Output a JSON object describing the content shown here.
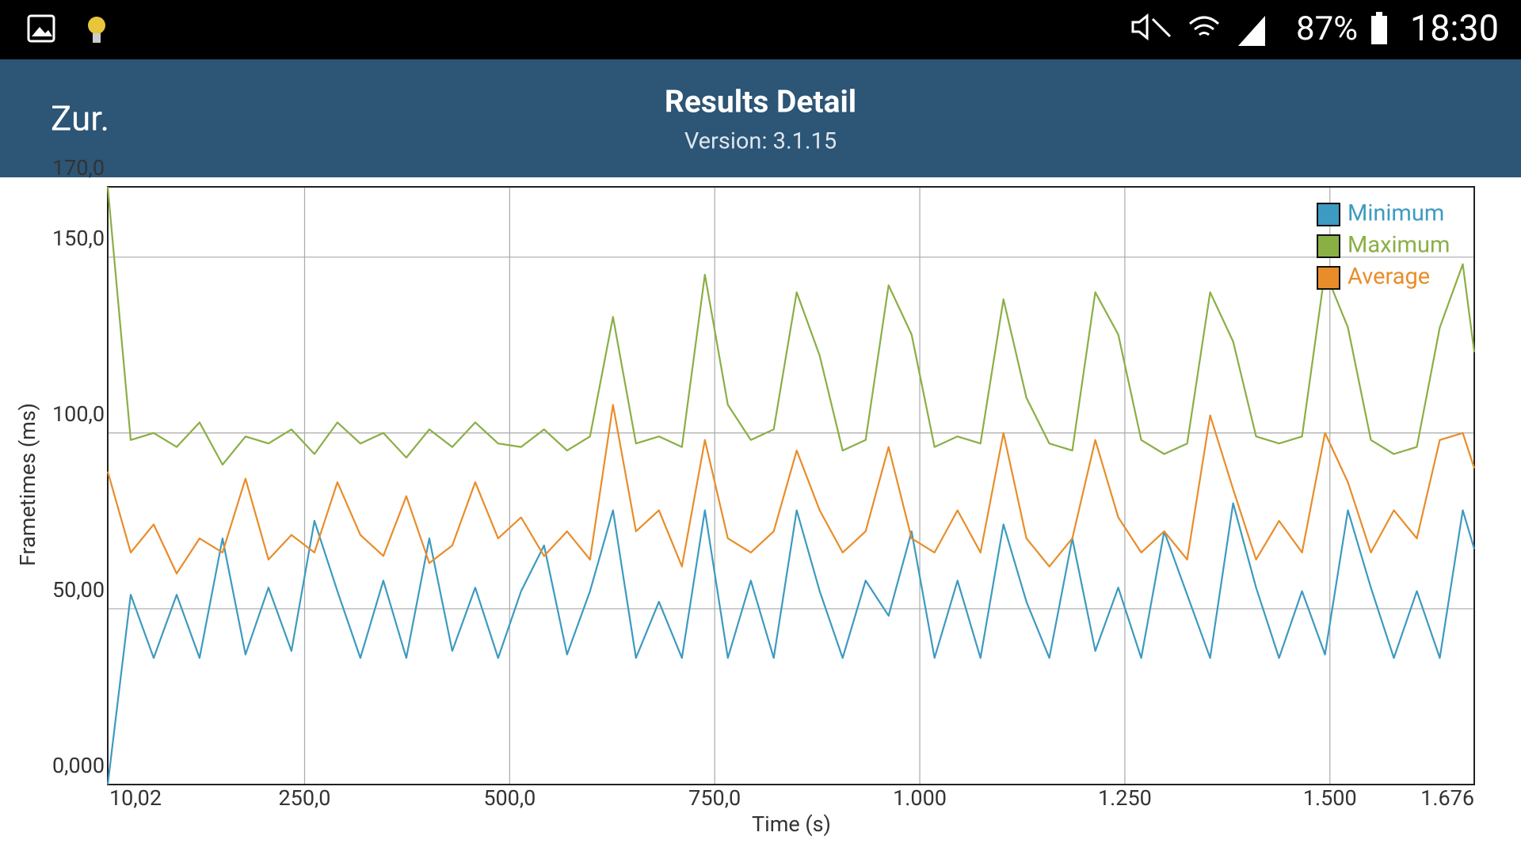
{
  "status_bar": {
    "battery": "87%",
    "time": "18:30"
  },
  "header": {
    "back": "Zur.",
    "title": "Results Detail",
    "subtitle": "Version: 3.1.15"
  },
  "chart_data": {
    "type": "line",
    "xlabel": "Time (s)",
    "ylabel": "Frametimes (ms)",
    "xlim": [
      10.02,
      1676
    ],
    "ylim": [
      0,
      170
    ],
    "xticks": [
      {
        "value": 10.02,
        "label": "10,02"
      },
      {
        "value": 250,
        "label": "250,0"
      },
      {
        "value": 500,
        "label": "500,0"
      },
      {
        "value": 750,
        "label": "750,0"
      },
      {
        "value": 1000,
        "label": "1.000"
      },
      {
        "value": 1250,
        "label": "1.250"
      },
      {
        "value": 1500,
        "label": "1.500"
      },
      {
        "value": 1676,
        "label": "1.676"
      }
    ],
    "yticks": [
      {
        "value": 0,
        "label": "0,000"
      },
      {
        "value": 50,
        "label": "50,00"
      },
      {
        "value": 100,
        "label": "100,0"
      },
      {
        "value": 150,
        "label": "150,0"
      },
      {
        "value": 170,
        "label": "170,0"
      }
    ],
    "grid": true,
    "legend": "upper right",
    "x": [
      10.02,
      38,
      66,
      94,
      122,
      150,
      178,
      206,
      234,
      262,
      290,
      318,
      346,
      374,
      402,
      430,
      458,
      486,
      514,
      542,
      570,
      598,
      626,
      654,
      682,
      710,
      738,
      766,
      794,
      822,
      850,
      878,
      906,
      934,
      962,
      990,
      1018,
      1046,
      1074,
      1102,
      1130,
      1158,
      1186,
      1214,
      1242,
      1270,
      1298,
      1326,
      1354,
      1382,
      1410,
      1438,
      1466,
      1494,
      1522,
      1550,
      1578,
      1606,
      1634,
      1662,
      1676
    ],
    "series": [
      {
        "name": "Minimum",
        "color": "#3d9ac0",
        "values": [
          0,
          54,
          36,
          54,
          36,
          70,
          37,
          56,
          38,
          75,
          55,
          36,
          58,
          36,
          70,
          38,
          56,
          36,
          55,
          68,
          37,
          55,
          78,
          36,
          52,
          36,
          78,
          36,
          58,
          36,
          78,
          55,
          36,
          58,
          48,
          72,
          36,
          58,
          36,
          74,
          52,
          36,
          70,
          38,
          56,
          36,
          72,
          54,
          36,
          80,
          56,
          36,
          55,
          37,
          78,
          56,
          36,
          55,
          36,
          78,
          67
        ]
      },
      {
        "name": "Maximum",
        "color": "#8aaf45",
        "values": [
          170,
          98,
          100,
          96,
          103,
          91,
          99,
          97,
          101,
          94,
          103,
          97,
          100,
          93,
          101,
          96,
          103,
          97,
          96,
          101,
          95,
          99,
          133,
          97,
          99,
          96,
          145,
          108,
          98,
          101,
          140,
          122,
          95,
          98,
          142,
          128,
          96,
          99,
          97,
          138,
          110,
          97,
          95,
          140,
          128,
          98,
          94,
          97,
          140,
          126,
          99,
          97,
          99,
          146,
          130,
          98,
          94,
          96,
          130,
          148,
          123
        ]
      },
      {
        "name": "Average",
        "color": "#e88d2a",
        "values": [
          89,
          66,
          74,
          60,
          70,
          66,
          87,
          64,
          71,
          66,
          86,
          71,
          65,
          82,
          63,
          68,
          86,
          70,
          76,
          65,
          72,
          64,
          108,
          72,
          78,
          62,
          98,
          70,
          66,
          72,
          95,
          78,
          66,
          72,
          96,
          70,
          66,
          78,
          66,
          100,
          70,
          62,
          70,
          98,
          76,
          66,
          72,
          64,
          105,
          84,
          64,
          75,
          66,
          100,
          86,
          66,
          78,
          70,
          98,
          100,
          90
        ]
      }
    ]
  }
}
